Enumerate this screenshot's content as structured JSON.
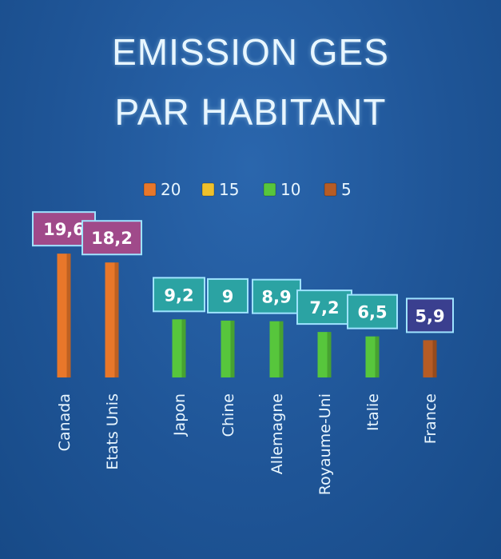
{
  "chart_data": {
    "type": "bar",
    "title_lines": [
      "EMISSION GES",
      "PAR HABITANT"
    ],
    "categories": [
      "Canada",
      "Etats Unis",
      "Japon",
      "Chine",
      "Allemagne",
      "Royaume-Uni",
      "Italie",
      "France"
    ],
    "values": [
      19.6,
      18.2,
      9.2,
      9,
      8.9,
      7.2,
      6.5,
      5.9
    ],
    "data_labels": [
      "19,6",
      "18,2",
      "9,2",
      "9",
      "8,9",
      "7,2",
      "6,5",
      "5,9"
    ],
    "legend": [
      {
        "label": "20",
        "color": "#e8772a"
      },
      {
        "label": "15",
        "color": "#efc12c"
      },
      {
        "label": "10",
        "color": "#57c63c"
      },
      {
        "label": "5",
        "color": "#b65c25"
      }
    ],
    "bar_colors": [
      "#e8772a",
      "#e8772a",
      "#57c63c",
      "#57c63c",
      "#57c63c",
      "#57c63c",
      "#57c63c",
      "#b65c25"
    ],
    "label_fill": [
      "#a04a8a",
      "#a04a8a",
      "#2ba3a3",
      "#2ba3a3",
      "#2ba3a3",
      "#2ba3a3",
      "#2ba3a3",
      "#3a3f8f"
    ],
    "label_border": "#9fe3ff",
    "text_color": "#e8f6ff",
    "legend_placement": "top-center",
    "grid": false,
    "ylim": [
      0,
      20
    ]
  }
}
